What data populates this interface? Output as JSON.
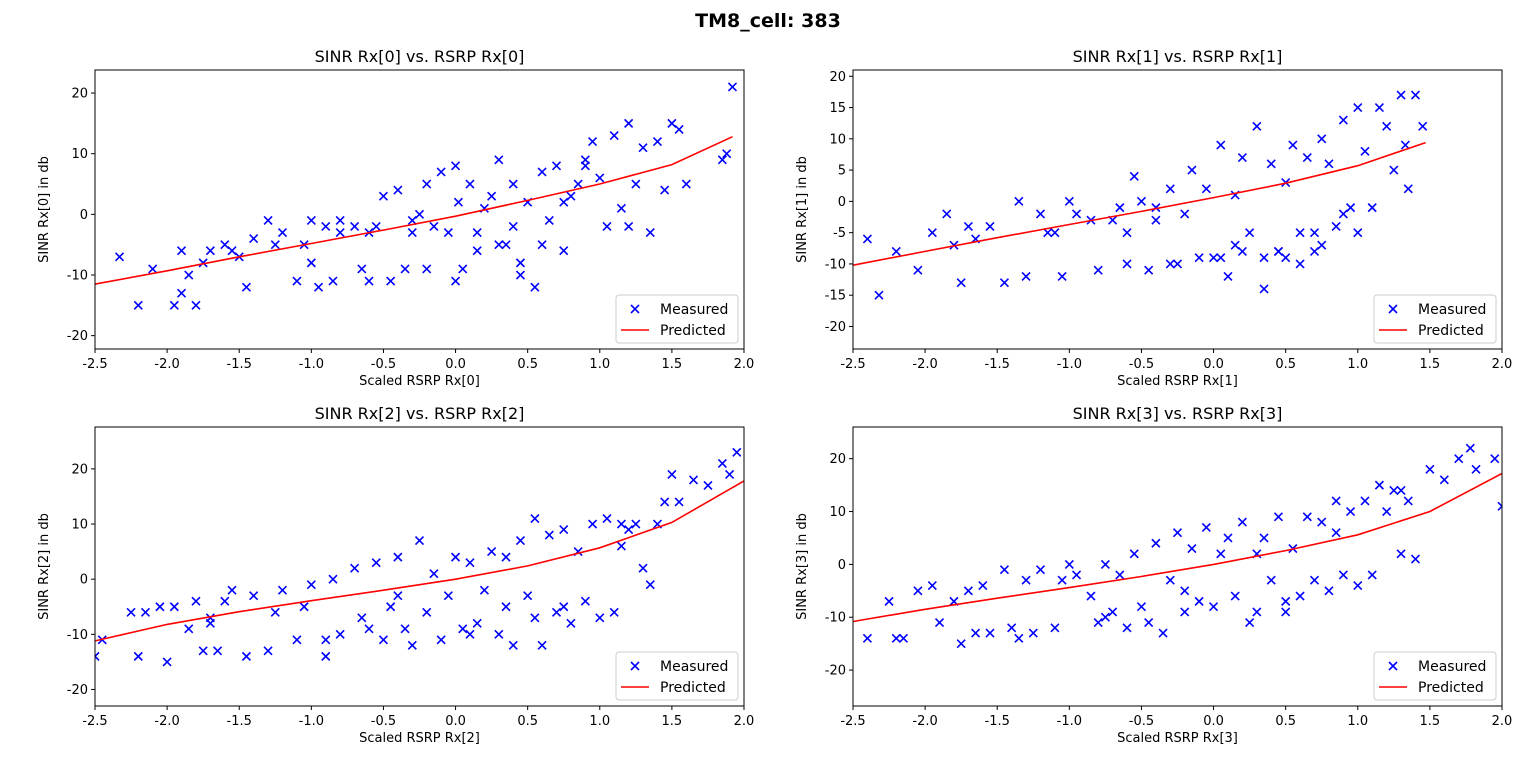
{
  "figure": {
    "suptitle": "TM8_cell: 383"
  },
  "colors": {
    "measured": "#0000ff",
    "predicted": "#ff0000",
    "axes": "#000000"
  },
  "chart_data": [
    {
      "type": "scatter",
      "title": "SINR Rx[0] vs. RSRP Rx[0]",
      "xlabel": "Scaled RSRP Rx[0]",
      "ylabel": "SINR Rx[0] in db",
      "xlim": [
        -2.5,
        2.0
      ],
      "ylim": [
        -22.2,
        23.8
      ],
      "xticks": [
        "-2.5",
        "-2.0",
        "-1.5",
        "-1.0",
        "-0.5",
        "0.0",
        "0.5",
        "1.0",
        "1.5",
        "2.0"
      ],
      "yticks": [
        "-20",
        "-10",
        "0",
        "10",
        "20"
      ],
      "legend": {
        "position": "lower right",
        "entries": [
          "Measured",
          "Predicted"
        ]
      },
      "series": [
        {
          "name": "Measured",
          "kind": "scatter",
          "marker": "x",
          "x": [
            -2.33,
            -2.2,
            -2.1,
            -1.95,
            -1.9,
            -1.85,
            -1.8,
            -1.75,
            -1.7,
            -1.6,
            -1.55,
            -1.45,
            -1.4,
            -1.3,
            -1.25,
            -1.2,
            -1.1,
            -1.05,
            -1.0,
            -0.9,
            -0.85,
            -0.8,
            -0.7,
            -0.65,
            -0.6,
            -0.55,
            -0.5,
            -0.45,
            -0.4,
            -0.35,
            -0.3,
            -0.25,
            -0.2,
            -0.15,
            -0.1,
            -0.05,
            0.0,
            0.02,
            0.05,
            0.1,
            0.15,
            0.2,
            0.25,
            0.3,
            0.35,
            0.4,
            0.45,
            0.5,
            0.55,
            0.6,
            0.65,
            0.7,
            0.75,
            0.8,
            0.85,
            0.9,
            0.95,
            1.0,
            1.05,
            1.1,
            1.15,
            1.2,
            1.25,
            1.3,
            1.35,
            1.4,
            1.45,
            1.5,
            1.55,
            1.85,
            1.88,
            1.92,
            -0.95,
            -0.6,
            -0.3,
            0.0,
            0.3,
            0.45,
            0.6,
            0.75,
            -1.5,
            -0.8,
            -0.2,
            0.15,
            0.4,
            0.9,
            1.2,
            1.6,
            -1.9,
            -1.0
          ],
          "y": [
            -7,
            -15,
            -9,
            -15,
            -6,
            -10,
            -15,
            -8,
            -6,
            -5,
            -6,
            -12,
            -4,
            -1,
            -5,
            -3,
            -11,
            -5,
            -1,
            -2,
            -11,
            -1,
            -2,
            -9,
            -11,
            -2,
            3,
            -11,
            4,
            -9,
            -1,
            0,
            -9,
            -2,
            7,
            -3,
            8,
            2,
            -9,
            5,
            -3,
            1,
            3,
            9,
            -5,
            5,
            -10,
            2,
            -12,
            7,
            -1,
            8,
            -6,
            3,
            5,
            8,
            12,
            6,
            -2,
            13,
            1,
            15,
            5,
            11,
            -3,
            12,
            4,
            15,
            14,
            9,
            10,
            21,
            -12,
            -3,
            -3,
            -11,
            -5,
            -8,
            -5,
            2,
            -7,
            -3,
            5,
            -6,
            -2,
            9,
            -2,
            5,
            -13,
            -8
          ]
        },
        {
          "name": "Predicted",
          "kind": "line",
          "x": [
            -2.5,
            -2.0,
            -1.5,
            -1.0,
            -0.5,
            0.0,
            0.5,
            1.0,
            1.5,
            1.92
          ],
          "y": [
            -11.5,
            -9.3,
            -7.0,
            -4.8,
            -2.6,
            -0.3,
            2.3,
            5.0,
            8.2,
            12.8
          ]
        }
      ]
    },
    {
      "type": "scatter",
      "title": "SINR Rx[1] vs. RSRP Rx[1]",
      "xlabel": "Scaled RSRP Rx[1]",
      "ylabel": "SINR Rx[1] in db",
      "xlim": [
        -2.5,
        2.0
      ],
      "ylim": [
        -23.6,
        21.0
      ],
      "xticks": [
        "-2.5",
        "-2.0",
        "-1.5",
        "-1.0",
        "-0.5",
        "0.0",
        "0.5",
        "1.0",
        "1.5",
        "2.0"
      ],
      "yticks": [
        "-20",
        "-15",
        "-10",
        "-5",
        "0",
        "5",
        "10",
        "15",
        "20"
      ],
      "legend": {
        "position": "lower right",
        "entries": [
          "Measured",
          "Predicted"
        ]
      },
      "series": [
        {
          "name": "Measured",
          "kind": "scatter",
          "marker": "x",
          "x": [
            -2.4,
            -2.32,
            -2.2,
            -2.05,
            -1.95,
            -1.85,
            -1.75,
            -1.7,
            -1.65,
            -1.55,
            -1.45,
            -1.35,
            -1.3,
            -1.2,
            -1.15,
            -1.05,
            -1.0,
            -0.95,
            -0.85,
            -0.8,
            -0.7,
            -0.65,
            -0.6,
            -0.55,
            -0.5,
            -0.45,
            -0.4,
            -0.3,
            -0.25,
            -0.2,
            -0.15,
            -0.1,
            -0.05,
            0.0,
            0.05,
            0.1,
            0.15,
            0.2,
            0.25,
            0.3,
            0.35,
            0.4,
            0.45,
            0.5,
            0.55,
            0.6,
            0.65,
            0.7,
            0.75,
            0.8,
            0.85,
            0.9,
            0.95,
            1.0,
            1.05,
            1.1,
            1.15,
            1.2,
            1.25,
            1.3,
            1.35,
            1.4,
            1.45,
            -0.6,
            -0.3,
            0.05,
            0.2,
            0.35,
            0.5,
            0.6,
            0.75,
            0.9,
            -1.8,
            -1.1,
            -0.4,
            0.15,
            0.45,
            0.7,
            1.0,
            1.33
          ],
          "y": [
            -6,
            -15,
            -8,
            -11,
            -5,
            -2,
            -13,
            -4,
            -6,
            -4,
            -13,
            0,
            -12,
            -2,
            -5,
            -12,
            0,
            -2,
            -3,
            -11,
            -3,
            -1,
            -10,
            4,
            0,
            -11,
            -1,
            2,
            -10,
            -2,
            5,
            -9,
            2,
            -9,
            9,
            -12,
            1,
            7,
            -5,
            12,
            -9,
            6,
            -8,
            3,
            9,
            -5,
            7,
            -8,
            10,
            6,
            -4,
            13,
            -1,
            15,
            8,
            -1,
            15,
            12,
            5,
            17,
            2,
            17,
            12,
            -5,
            -10,
            -9,
            -8,
            -14,
            -9,
            -10,
            -7,
            -2,
            -7,
            -5,
            -3,
            -7,
            -8,
            -5,
            -5,
            9
          ],
          "note": ""
        },
        {
          "name": "Predicted",
          "kind": "line",
          "x": [
            -2.5,
            -2.0,
            -1.5,
            -1.0,
            -0.5,
            0.0,
            0.5,
            1.0,
            1.47
          ],
          "y": [
            -10.2,
            -8.0,
            -5.8,
            -3.7,
            -1.6,
            0.6,
            2.9,
            5.7,
            9.4
          ]
        }
      ]
    },
    {
      "type": "scatter",
      "title": "SINR Rx[2] vs. RSRP Rx[2]",
      "xlabel": "Scaled RSRP Rx[2]",
      "ylabel": "SINR Rx[2] in db",
      "xlim": [
        -2.5,
        2.0
      ],
      "ylim": [
        -23.0,
        27.6
      ],
      "xticks": [
        "-2.5",
        "-2.0",
        "-1.5",
        "-1.0",
        "-0.5",
        "0.0",
        "0.5",
        "1.0",
        "1.5",
        "2.0"
      ],
      "yticks": [
        "-20",
        "-10",
        "0",
        "10",
        "20"
      ],
      "legend": {
        "position": "lower right",
        "entries": [
          "Measured",
          "Predicted"
        ]
      },
      "series": [
        {
          "name": "Measured",
          "kind": "scatter",
          "marker": "x",
          "x": [
            -2.5,
            -2.45,
            -2.25,
            -2.2,
            -2.15,
            -2.05,
            -2.0,
            -1.95,
            -1.85,
            -1.8,
            -1.75,
            -1.7,
            -1.65,
            -1.6,
            -1.55,
            -1.45,
            -1.4,
            -1.3,
            -1.25,
            -1.2,
            -1.1,
            -1.05,
            -1.0,
            -0.9,
            -0.85,
            -0.8,
            -0.7,
            -0.65,
            -0.6,
            -0.55,
            -0.5,
            -0.45,
            -0.4,
            -0.35,
            -0.3,
            -0.25,
            -0.2,
            -0.15,
            -0.1,
            -0.05,
            0.0,
            0.05,
            0.1,
            0.15,
            0.2,
            0.25,
            0.3,
            0.35,
            0.4,
            0.45,
            0.5,
            0.55,
            0.6,
            0.65,
            0.7,
            0.75,
            0.8,
            0.85,
            0.9,
            0.95,
            1.0,
            1.05,
            1.1,
            1.15,
            1.2,
            1.25,
            1.3,
            1.35,
            1.4,
            1.45,
            1.5,
            1.55,
            1.65,
            1.75,
            1.85,
            1.9,
            1.95,
            -1.7,
            -0.9,
            -0.4,
            0.1,
            0.35,
            0.55,
            0.75,
            1.15
          ],
          "y": [
            -14,
            -11,
            -6,
            -14,
            -6,
            -5,
            -15,
            -5,
            -9,
            -4,
            -13,
            -7,
            -13,
            -4,
            -2,
            -14,
            -3,
            -13,
            -6,
            -2,
            -11,
            -5,
            -1,
            -11,
            0,
            -10,
            2,
            -7,
            -9,
            3,
            -11,
            -5,
            4,
            -9,
            -12,
            7,
            -6,
            1,
            -11,
            -3,
            4,
            -9,
            3,
            -8,
            -2,
            5,
            -10,
            4,
            -12,
            7,
            -3,
            11,
            -12,
            8,
            -6,
            9,
            -8,
            5,
            -4,
            10,
            -7,
            11,
            -6,
            6,
            9,
            10,
            2,
            -1,
            10,
            14,
            19,
            14,
            18,
            17,
            21,
            19,
            23,
            -8,
            -14,
            -3,
            -10,
            -5,
            -7,
            -5,
            10
          ]
        },
        {
          "name": "Predicted",
          "kind": "line",
          "x": [
            -2.5,
            -2.0,
            -1.5,
            -1.0,
            -0.5,
            0.0,
            0.5,
            1.0,
            1.5,
            2.0
          ],
          "y": [
            -11.2,
            -8.2,
            -5.9,
            -3.9,
            -2.0,
            0.0,
            2.4,
            5.7,
            10.3,
            17.8
          ]
        }
      ]
    },
    {
      "type": "scatter",
      "title": "SINR Rx[3] vs. RSRP Rx[3]",
      "xlabel": "Scaled RSRP Rx[3]",
      "ylabel": "SINR Rx[3] in db",
      "xlim": [
        -2.5,
        2.0
      ],
      "ylim": [
        -26.8,
        26.0
      ],
      "xticks": [
        "-2.5",
        "-2.0",
        "-1.5",
        "-1.0",
        "-0.5",
        "0.0",
        "0.5",
        "1.0",
        "1.5",
        "2.0"
      ],
      "yticks": [
        "-20",
        "-10",
        "0",
        "10",
        "20"
      ],
      "legend": {
        "position": "lower right",
        "entries": [
          "Measured",
          "Predicted"
        ]
      },
      "series": [
        {
          "name": "Measured",
          "kind": "scatter",
          "marker": "x",
          "x": [
            -2.4,
            -2.25,
            -2.2,
            -2.15,
            -2.05,
            -1.95,
            -1.9,
            -1.8,
            -1.75,
            -1.7,
            -1.65,
            -1.6,
            -1.55,
            -1.45,
            -1.4,
            -1.35,
            -1.3,
            -1.25,
            -1.2,
            -1.1,
            -1.05,
            -1.0,
            -0.95,
            -0.85,
            -0.8,
            -0.75,
            -0.7,
            -0.65,
            -0.6,
            -0.55,
            -0.5,
            -0.45,
            -0.4,
            -0.35,
            -0.3,
            -0.25,
            -0.2,
            -0.15,
            -0.1,
            -0.05,
            0.0,
            0.05,
            0.1,
            0.15,
            0.2,
            0.25,
            0.3,
            0.35,
            0.4,
            0.45,
            0.5,
            0.55,
            0.6,
            0.65,
            0.7,
            0.75,
            0.8,
            0.85,
            0.9,
            0.95,
            1.0,
            1.05,
            1.1,
            1.15,
            1.2,
            1.25,
            1.3,
            1.35,
            1.4,
            1.5,
            1.6,
            1.7,
            1.78,
            1.82,
            1.95,
            2.0,
            -0.75,
            -0.2,
            0.3,
            0.5,
            0.85,
            1.3
          ],
          "y": [
            -14,
            -7,
            -14,
            -14,
            -5,
            -4,
            -11,
            -7,
            -15,
            -5,
            -13,
            -4,
            -13,
            -1,
            -12,
            -14,
            -3,
            -13,
            -1,
            -12,
            -3,
            0,
            -2,
            -6,
            -11,
            0,
            -9,
            -2,
            -12,
            2,
            -8,
            -11,
            4,
            -13,
            -3,
            6,
            -9,
            3,
            -7,
            7,
            -8,
            2,
            5,
            -6,
            8,
            -11,
            2,
            5,
            -3,
            9,
            -9,
            3,
            -6,
            9,
            -3,
            8,
            -5,
            12,
            -2,
            10,
            -4,
            12,
            -2,
            15,
            10,
            14,
            2,
            12,
            1,
            18,
            16,
            20,
            22,
            18,
            20,
            11,
            -10,
            -5,
            -9,
            -7,
            6,
            14
          ]
        },
        {
          "name": "Predicted",
          "kind": "line",
          "x": [
            -2.5,
            -2.0,
            -1.5,
            -1.0,
            -0.5,
            0.0,
            0.5,
            1.0,
            1.5,
            2.0
          ],
          "y": [
            -10.8,
            -8.5,
            -6.4,
            -4.4,
            -2.3,
            0.0,
            2.6,
            5.6,
            10.0,
            17.2
          ]
        }
      ]
    }
  ]
}
